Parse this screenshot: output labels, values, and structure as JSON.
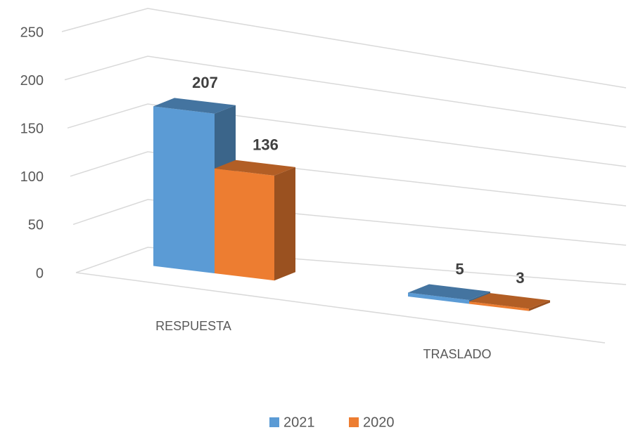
{
  "chart_data": {
    "type": "bar3d",
    "categories": [
      "RESPUESTA",
      "TRASLADO"
    ],
    "series": [
      {
        "name": "2021",
        "color": "#5b9bd5",
        "values": [
          207,
          5
        ]
      },
      {
        "name": "2020",
        "color": "#ed7d31",
        "values": [
          136,
          3
        ]
      }
    ],
    "ylim": [
      0,
      250
    ],
    "yticks": [
      0,
      50,
      100,
      150,
      200,
      250
    ],
    "grid": true,
    "legend": "bottom"
  }
}
